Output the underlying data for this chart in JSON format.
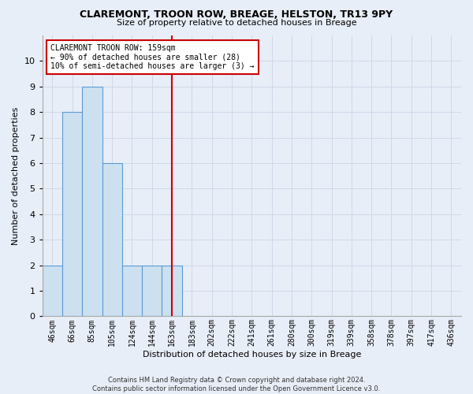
{
  "title": "CLAREMONT, TROON ROW, BREAGE, HELSTON, TR13 9PY",
  "subtitle": "Size of property relative to detached houses in Breage",
  "xlabel": "Distribution of detached houses by size in Breage",
  "ylabel": "Number of detached properties",
  "bins": [
    "46sqm",
    "66sqm",
    "85sqm",
    "105sqm",
    "124sqm",
    "144sqm",
    "163sqm",
    "183sqm",
    "202sqm",
    "222sqm",
    "241sqm",
    "261sqm",
    "280sqm",
    "300sqm",
    "319sqm",
    "339sqm",
    "358sqm",
    "378sqm",
    "397sqm",
    "417sqm",
    "436sqm"
  ],
  "counts": [
    2,
    8,
    9,
    6,
    2,
    2,
    2,
    0,
    0,
    0,
    0,
    0,
    0,
    0,
    0,
    0,
    0,
    0,
    0,
    0,
    0
  ],
  "bar_color": "#cce0f0",
  "bar_edge_color": "#5b9bd5",
  "vline_x_bin": 6,
  "vline_color": "#cc0000",
  "annotation_text": "CLAREMONT TROON ROW: 159sqm\n← 90% of detached houses are smaller (28)\n10% of semi-detached houses are larger (3) →",
  "annotation_box_color": "#ffffff",
  "annotation_box_edge_color": "#cc0000",
  "ylim": [
    0,
    11
  ],
  "yticks": [
    0,
    1,
    2,
    3,
    4,
    5,
    6,
    7,
    8,
    9,
    10
  ],
  "grid_color": "#d0d8e8",
  "footnote": "Contains HM Land Registry data © Crown copyright and database right 2024.\nContains public sector information licensed under the Open Government Licence v3.0.",
  "background_color": "#e8eef8",
  "title_fontsize": 9,
  "subtitle_fontsize": 8,
  "ylabel_fontsize": 8,
  "xlabel_fontsize": 8,
  "tick_fontsize": 7,
  "annot_fontsize": 7
}
